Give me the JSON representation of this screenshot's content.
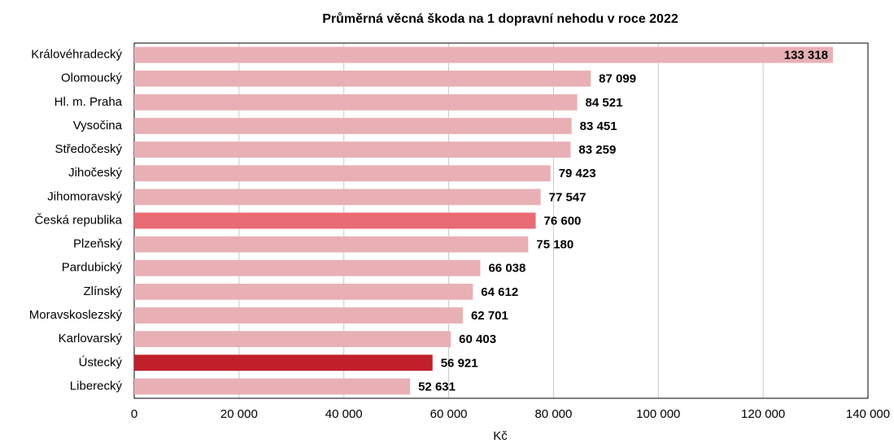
{
  "chart_data": {
    "type": "bar",
    "orientation": "horizontal",
    "title": "Průměrná věcná škoda na 1 dopravní nehodu v roce 2022",
    "x_label": "Kč",
    "categories": [
      "Královéhradecký",
      "Olomoucký",
      "Hl. m. Praha",
      "Vysočina",
      "Středočeský",
      "Jihočeský",
      "Jihomoravský",
      "Česká republika",
      "Plzeňský",
      "Pardubický",
      "Zlínský",
      "Moravskoslezský",
      "Karlovarský",
      "Ústecký",
      "Liberecký"
    ],
    "values": [
      133318,
      87099,
      84521,
      83451,
      83259,
      79423,
      77547,
      76600,
      75180,
      66038,
      64612,
      62701,
      60403,
      56921,
      52631
    ],
    "value_labels": [
      "133 318",
      "87 099",
      "84 521",
      "83 451",
      "83 259",
      "79 423",
      "77 547",
      "76 600",
      "75 180",
      "66 038",
      "64 612",
      "62 701",
      "60 403",
      "56 921",
      "52 631"
    ],
    "colors": [
      "#e8b0b5",
      "#e8b0b5",
      "#e8b0b5",
      "#e8b0b5",
      "#e8b0b5",
      "#e8b0b5",
      "#e8b0b5",
      "#e96b73",
      "#e8b0b5",
      "#e8b0b5",
      "#e8b0b5",
      "#e8b0b5",
      "#e8b0b5",
      "#c0202a",
      "#e8b0b5"
    ],
    "label_color": "#c0202a",
    "xlim": [
      0,
      140000
    ],
    "xticks": [
      0,
      {
        "value": 20000,
        "label": "20 000"
      },
      {
        "value": 40000,
        "label": "40 000"
      },
      {
        "value": 60000,
        "label": "60 000"
      },
      {
        "value": 80000,
        "label": "80 000"
      },
      {
        "value": 100000,
        "label": "100 000"
      },
      {
        "value": 120000,
        "label": "120 000"
      },
      {
        "value": 140000,
        "label": "140 000"
      }
    ],
    "grid": true
  }
}
